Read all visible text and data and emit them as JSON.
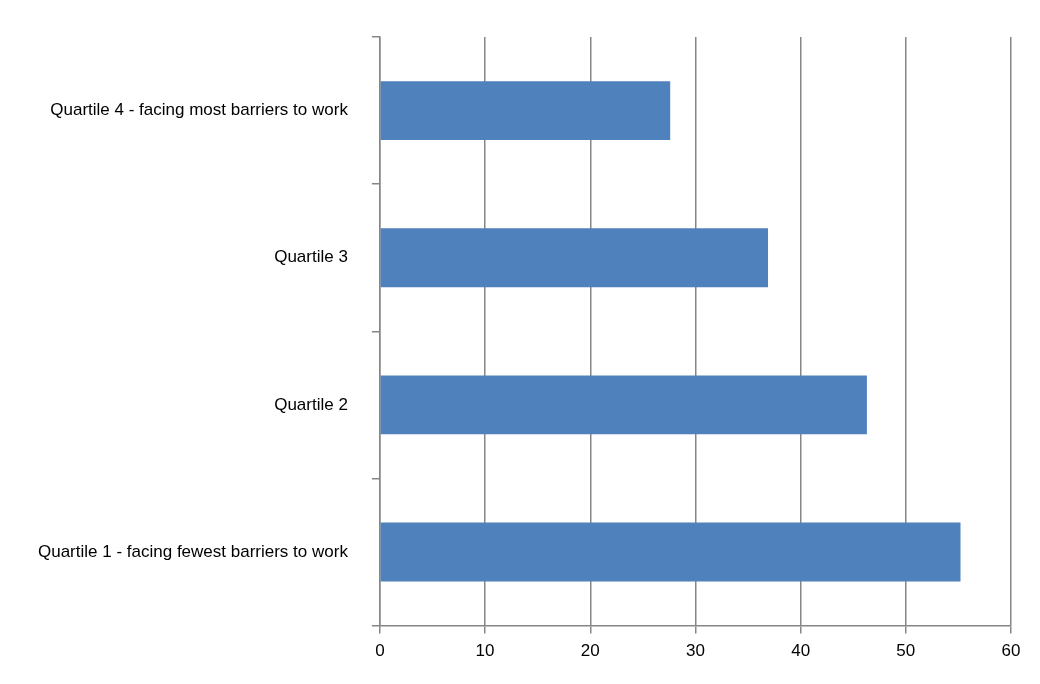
{
  "chart_data": {
    "type": "bar",
    "orientation": "horizontal",
    "categories": [
      "Quartile 4 - facing most barriers to work",
      "Quartile 3",
      "Quartile 2",
      "Quartile 1 - facing fewest barriers to work"
    ],
    "values": [
      27.6,
      36.9,
      46.3,
      55.2
    ],
    "color": "#4f81bd",
    "xlim": [
      0,
      60
    ],
    "xticks": [
      0,
      10,
      20,
      30,
      40,
      50,
      60
    ],
    "grid": "x",
    "legend": false
  }
}
